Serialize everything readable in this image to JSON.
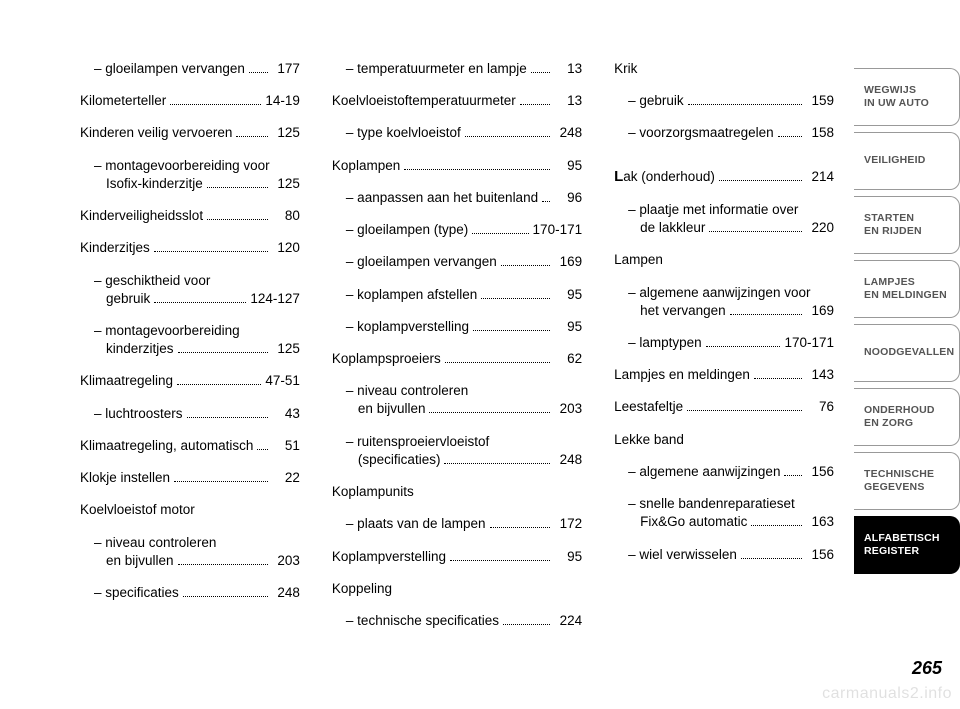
{
  "page_number": "265",
  "watermark": "carmanuals2.info",
  "columns": [
    [
      {
        "type": "sub",
        "label": "– gloeilampen vervangen",
        "page": "177"
      },
      {
        "type": "top",
        "label": "Kilometerteller",
        "page": "14-19"
      },
      {
        "type": "top",
        "label": "Kinderen veilig vervoeren",
        "page": "125"
      },
      {
        "type": "ml",
        "l1": "– montagevoorbereiding voor",
        "l2": "Isofix-kinderzitje",
        "page": "125"
      },
      {
        "type": "top",
        "label": "Kinderveiligheidsslot",
        "page": "80"
      },
      {
        "type": "top",
        "label": "Kinderzitjes",
        "page": "120"
      },
      {
        "type": "ml",
        "l1": "– geschiktheid voor",
        "l2": "gebruik",
        "page": "124-127"
      },
      {
        "type": "ml",
        "l1": "– montagevoorbereiding",
        "l2": "kinderzitjes",
        "page": "125"
      },
      {
        "type": "top",
        "label": "Klimaatregeling",
        "page": "47-51"
      },
      {
        "type": "sub",
        "label": "– luchtroosters",
        "page": "43"
      },
      {
        "type": "top",
        "label": "Klimaatregeling, automatisch",
        "page": "51"
      },
      {
        "type": "top",
        "label": "Klokje instellen",
        "page": "22"
      },
      {
        "type": "topnp",
        "label": "Koelvloeistof motor"
      },
      {
        "type": "ml",
        "l1": "– niveau controleren",
        "l2": "en bijvullen",
        "page": "203"
      },
      {
        "type": "sub",
        "label": "– specificaties",
        "page": "248"
      }
    ],
    [
      {
        "type": "sub",
        "label": "– temperatuurmeter en lampje",
        "page": "13"
      },
      {
        "type": "top",
        "label": "Koelvloeistoftemperatuurmeter",
        "page": "13"
      },
      {
        "type": "sub",
        "label": "– type koelvloeistof",
        "page": "248"
      },
      {
        "type": "top",
        "label": "Koplampen",
        "page": "95"
      },
      {
        "type": "sub",
        "label": "– aanpassen aan het buitenland",
        "page": "96"
      },
      {
        "type": "sub",
        "label": "– gloeilampen (type)",
        "page": "170-171"
      },
      {
        "type": "sub",
        "label": "– gloeilampen vervangen",
        "page": "169"
      },
      {
        "type": "sub",
        "label": "– koplampen afstellen",
        "page": "95"
      },
      {
        "type": "sub",
        "label": "– koplampverstelling",
        "page": "95"
      },
      {
        "type": "top",
        "label": "Koplampsproeiers",
        "page": "62"
      },
      {
        "type": "ml",
        "l1": "– niveau controleren",
        "l2": "en bijvullen",
        "page": "203"
      },
      {
        "type": "ml",
        "l1": "– ruitensproeiervloeistof",
        "l2": "(specificaties)",
        "page": "248"
      },
      {
        "type": "topnp",
        "label": "Koplampunits"
      },
      {
        "type": "sub",
        "label": "– plaats van de lampen",
        "page": "172"
      },
      {
        "type": "top",
        "label": "Koplampverstelling",
        "page": "95"
      },
      {
        "type": "topnp",
        "label": "Koppeling"
      },
      {
        "type": "sub",
        "label": "– technische specificaties",
        "page": "224"
      }
    ],
    [
      {
        "type": "topnp",
        "label": "Krik"
      },
      {
        "type": "sub",
        "label": "– gebruik",
        "page": "159"
      },
      {
        "type": "sub",
        "label": "– voorzorgsmaatregelen",
        "page": "158"
      },
      {
        "type": "spacer"
      },
      {
        "type": "top",
        "drop": "L",
        "label": "ak (onderhoud)",
        "page": "214"
      },
      {
        "type": "ml",
        "l1": "– plaatje met informatie over",
        "l2": "de lakkleur",
        "page": "220"
      },
      {
        "type": "topnp",
        "label": "Lampen"
      },
      {
        "type": "ml",
        "l1": "– algemene aanwijzingen voor",
        "l2": "het vervangen",
        "page": "169"
      },
      {
        "type": "sub",
        "label": "– lamptypen",
        "page": "170-171"
      },
      {
        "type": "top",
        "label": "Lampjes en meldingen",
        "page": "143"
      },
      {
        "type": "top",
        "label": "Leestafeltje",
        "page": "76"
      },
      {
        "type": "topnp",
        "label": "Lekke band"
      },
      {
        "type": "sub",
        "label": "– algemene aanwijzingen",
        "page": "156"
      },
      {
        "type": "ml",
        "l1": "– snelle bandenreparatieset",
        "l2": "Fix&Go automatic",
        "page": "163"
      },
      {
        "type": "sub",
        "label": "– wiel verwisselen",
        "page": "156"
      }
    ]
  ],
  "tabs": [
    {
      "l1": "WEGWIJS",
      "l2": "IN UW AUTO",
      "active": false
    },
    {
      "l1": "VEILIGHEID",
      "l2": "",
      "active": false
    },
    {
      "l1": "STARTEN",
      "l2": "EN RIJDEN",
      "active": false
    },
    {
      "l1": "LAMPJES",
      "l2": "EN MELDINGEN",
      "active": false
    },
    {
      "l1": "NOODGEVALLEN",
      "l2": "",
      "active": false
    },
    {
      "l1": "ONDERHOUD",
      "l2": "EN ZORG",
      "active": false
    },
    {
      "l1": "TECHNISCHE",
      "l2": "GEGEVENS",
      "active": false
    },
    {
      "l1": "ALFABETISCH",
      "l2": "REGISTER",
      "active": true
    }
  ]
}
